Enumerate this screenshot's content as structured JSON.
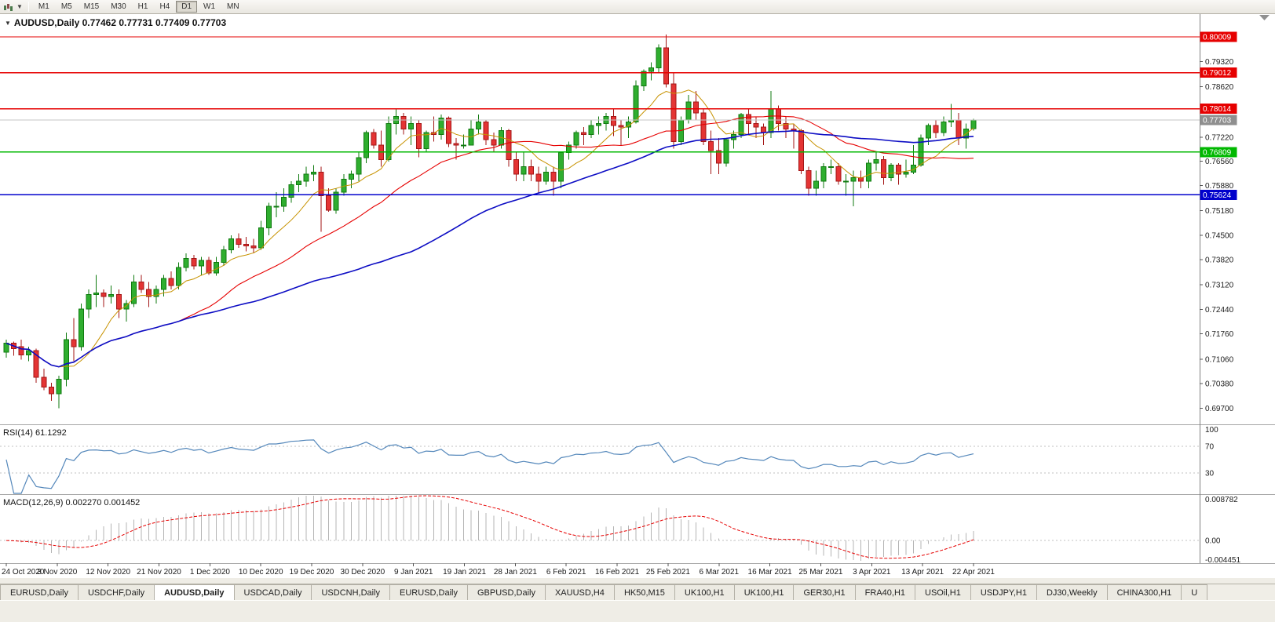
{
  "toolbar": {
    "timeframes": [
      "M1",
      "M5",
      "M15",
      "M30",
      "H1",
      "H4",
      "D1",
      "W1",
      "MN"
    ],
    "active_timeframe": "D1"
  },
  "chart": {
    "marker": "▼",
    "symbol": "AUDUSD,Daily",
    "ohlc": "0.77462 0.77731 0.77409 0.77703"
  },
  "chart_data": {
    "type": "candlestick",
    "symbol": "AUDUSD",
    "period": "Daily",
    "current_bar": {
      "open": 0.77462,
      "high": 0.77731,
      "low": 0.77409,
      "close": 0.77703
    },
    "price_axis": {
      "max": 0.8064,
      "min": 0.6927,
      "ticks": [
        "0.79320",
        "0.78620",
        "0.77220",
        "0.76560",
        "0.75880",
        "0.75180",
        "0.74500",
        "0.73820",
        "0.73120",
        "0.72440",
        "0.71760",
        "0.71060",
        "0.70380",
        "0.69700"
      ]
    },
    "hlines": [
      {
        "price": 0.80009,
        "label": "0.80009",
        "color": "#e60000"
      },
      {
        "price": 0.79012,
        "label": "0.79012",
        "color": "#e60000"
      },
      {
        "price": 0.78014,
        "label": "0.78014",
        "color": "#e60000"
      },
      {
        "price": 0.76809,
        "label": "0.76809",
        "color": "#00b800"
      },
      {
        "price": 0.75624,
        "label": "0.75624",
        "color": "#0000cc"
      }
    ],
    "bid_line": {
      "price": 0.77703,
      "label": "0.77703",
      "box_color": "#8f8f8f",
      "line_color": "#c6c6c6"
    },
    "moving_averages": [
      {
        "period": 8,
        "color": "#c79200",
        "width": 1
      },
      {
        "period": 24,
        "color": "#e60000",
        "width": 1.1
      },
      {
        "period": 55,
        "color": "#0d0dc4",
        "width": 1.6
      }
    ],
    "indicators": {
      "rsi": {
        "name": "RSI(14)",
        "value": "61.1292",
        "color": "#5588bb",
        "axis_labels": [
          "100",
          "70",
          "30"
        ],
        "levels": [
          70,
          30
        ]
      },
      "macd": {
        "name": "MACD(12,26,9)",
        "values": "0.002270 0.001452",
        "hist_color": "#b4b4b4",
        "signal_color": "#e60000",
        "axis_max": "0.008782",
        "axis_zero": "0.00",
        "axis_min": "-0.004451",
        "range": {
          "max": 0.008782,
          "min": -0.004451
        }
      }
    },
    "candle_colors": {
      "bull": "#2fae2f",
      "bull_border": "#0f7a0f",
      "bear": "#e43434",
      "bear_border": "#a31616"
    },
    "date_labels": [
      "24 Oct 2020",
      "3 Nov 2020",
      "12 Nov 2020",
      "21 Nov 2020",
      "1 Dec 2020",
      "10 Dec 2020",
      "19 Dec 2020",
      "30 Dec 2020",
      "9 Jan 2021",
      "19 Jan 2021",
      "28 Jan 2021",
      "6 Feb 2021",
      "16 Feb 2021",
      "25 Feb 2021",
      "6 Mar 2021",
      "16 Mar 2021",
      "25 Mar 2021",
      "3 Apr 2021",
      "13 Apr 2021",
      "22 Apr 2021"
    ],
    "candles": [
      [
        0.7125,
        0.716,
        0.711,
        0.715
      ],
      [
        0.715,
        0.7155,
        0.7115,
        0.7135
      ],
      [
        0.714,
        0.716,
        0.7105,
        0.7118
      ],
      [
        0.7118,
        0.714,
        0.71,
        0.713
      ],
      [
        0.713,
        0.7135,
        0.704,
        0.7055
      ],
      [
        0.7055,
        0.708,
        0.702,
        0.7028
      ],
      [
        0.7028,
        0.704,
        0.699,
        0.701
      ],
      [
        0.701,
        0.706,
        0.697,
        0.705
      ],
      [
        0.705,
        0.718,
        0.703,
        0.716
      ],
      [
        0.716,
        0.722,
        0.71,
        0.714
      ],
      [
        0.714,
        0.726,
        0.713,
        0.7245
      ],
      [
        0.7245,
        0.73,
        0.722,
        0.7285
      ],
      [
        0.7285,
        0.734,
        0.725,
        0.729
      ],
      [
        0.729,
        0.73,
        0.725,
        0.728
      ],
      [
        0.728,
        0.731,
        0.726,
        0.7285
      ],
      [
        0.7285,
        0.73,
        0.722,
        0.7245
      ],
      [
        0.7245,
        0.727,
        0.721,
        0.726
      ],
      [
        0.726,
        0.734,
        0.725,
        0.732
      ],
      [
        0.732,
        0.734,
        0.729,
        0.73
      ],
      [
        0.73,
        0.732,
        0.725,
        0.728
      ],
      [
        0.728,
        0.731,
        0.726,
        0.73
      ],
      [
        0.73,
        0.734,
        0.728,
        0.733
      ],
      [
        0.733,
        0.735,
        0.73,
        0.731
      ],
      [
        0.731,
        0.7375,
        0.73,
        0.736
      ],
      [
        0.736,
        0.74,
        0.735,
        0.7385
      ],
      [
        0.7385,
        0.7395,
        0.7355,
        0.7365
      ],
      [
        0.7365,
        0.739,
        0.734,
        0.738
      ],
      [
        0.738,
        0.739,
        0.734,
        0.7345
      ],
      [
        0.7345,
        0.739,
        0.7338,
        0.7375
      ],
      [
        0.7375,
        0.742,
        0.7365,
        0.741
      ],
      [
        0.741,
        0.745,
        0.74,
        0.744
      ],
      [
        0.744,
        0.7455,
        0.7415,
        0.7425
      ],
      [
        0.7425,
        0.7445,
        0.7405,
        0.742
      ],
      [
        0.742,
        0.744,
        0.74,
        0.7415
      ],
      [
        0.7415,
        0.749,
        0.741,
        0.747
      ],
      [
        0.747,
        0.754,
        0.745,
        0.753
      ],
      [
        0.753,
        0.757,
        0.75,
        0.753
      ],
      [
        0.753,
        0.758,
        0.7515,
        0.7555
      ],
      [
        0.7555,
        0.76,
        0.754,
        0.759
      ],
      [
        0.759,
        0.762,
        0.757,
        0.76
      ],
      [
        0.76,
        0.764,
        0.7585,
        0.762
      ],
      [
        0.762,
        0.7645,
        0.76,
        0.7625
      ],
      [
        0.7625,
        0.764,
        0.746,
        0.756
      ],
      [
        0.756,
        0.758,
        0.7515,
        0.752
      ],
      [
        0.752,
        0.758,
        0.751,
        0.757
      ],
      [
        0.757,
        0.762,
        0.756,
        0.7605
      ],
      [
        0.7605,
        0.763,
        0.758,
        0.762
      ],
      [
        0.762,
        0.768,
        0.76,
        0.7665
      ],
      [
        0.7665,
        0.774,
        0.765,
        0.7735
      ],
      [
        0.7735,
        0.7745,
        0.769,
        0.77
      ],
      [
        0.77,
        0.774,
        0.764,
        0.766
      ],
      [
        0.766,
        0.778,
        0.7655,
        0.776
      ],
      [
        0.776,
        0.78,
        0.773,
        0.778
      ],
      [
        0.778,
        0.779,
        0.773,
        0.7745
      ],
      [
        0.7745,
        0.778,
        0.77,
        0.776
      ],
      [
        0.776,
        0.777,
        0.7666,
        0.769
      ],
      [
        0.769,
        0.774,
        0.768,
        0.7735
      ],
      [
        0.7735,
        0.778,
        0.771,
        0.773
      ],
      [
        0.773,
        0.7785,
        0.7715,
        0.7775
      ],
      [
        0.7775,
        0.778,
        0.7695,
        0.7705
      ],
      [
        0.7705,
        0.772,
        0.766,
        0.77
      ],
      [
        0.77,
        0.773,
        0.769,
        0.77
      ],
      [
        0.77,
        0.777,
        0.77,
        0.7745
      ],
      [
        0.7745,
        0.7785,
        0.773,
        0.7765
      ],
      [
        0.7765,
        0.777,
        0.77,
        0.7715
      ],
      [
        0.7715,
        0.7735,
        0.768,
        0.77
      ],
      [
        0.77,
        0.775,
        0.769,
        0.774
      ],
      [
        0.774,
        0.7745,
        0.764,
        0.766
      ],
      [
        0.766,
        0.768,
        0.76,
        0.762
      ],
      [
        0.762,
        0.768,
        0.76,
        0.764
      ],
      [
        0.764,
        0.766,
        0.76,
        0.762
      ],
      [
        0.762,
        0.764,
        0.7565,
        0.76
      ],
      [
        0.76,
        0.764,
        0.759,
        0.7625
      ],
      [
        0.7625,
        0.764,
        0.756,
        0.76
      ],
      [
        0.76,
        0.768,
        0.758,
        0.768
      ],
      [
        0.768,
        0.771,
        0.766,
        0.77
      ],
      [
        0.77,
        0.774,
        0.769,
        0.7735
      ],
      [
        0.7735,
        0.775,
        0.77,
        0.773
      ],
      [
        0.773,
        0.777,
        0.772,
        0.7755
      ],
      [
        0.7755,
        0.778,
        0.773,
        0.776
      ],
      [
        0.776,
        0.779,
        0.774,
        0.778
      ],
      [
        0.778,
        0.78,
        0.7725,
        0.7755
      ],
      [
        0.7755,
        0.777,
        0.77,
        0.775
      ],
      [
        0.775,
        0.778,
        0.772,
        0.7765
      ],
      [
        0.7765,
        0.788,
        0.776,
        0.7865
      ],
      [
        0.7865,
        0.791,
        0.785,
        0.7905
      ],
      [
        0.7905,
        0.793,
        0.788,
        0.7915
      ],
      [
        0.7915,
        0.798,
        0.79,
        0.797
      ],
      [
        0.797,
        0.8007,
        0.786,
        0.787
      ],
      [
        0.787,
        0.79,
        0.769,
        0.771
      ],
      [
        0.771,
        0.778,
        0.77,
        0.777
      ],
      [
        0.777,
        0.784,
        0.776,
        0.782
      ],
      [
        0.782,
        0.785,
        0.777,
        0.779
      ],
      [
        0.779,
        0.78,
        0.77,
        0.771
      ],
      [
        0.771,
        0.774,
        0.762,
        0.7685
      ],
      [
        0.7685,
        0.772,
        0.762,
        0.765
      ],
      [
        0.765,
        0.772,
        0.764,
        0.7715
      ],
      [
        0.7715,
        0.774,
        0.769,
        0.773
      ],
      [
        0.773,
        0.779,
        0.772,
        0.7785
      ],
      [
        0.7785,
        0.78,
        0.773,
        0.776
      ],
      [
        0.776,
        0.778,
        0.772,
        0.775
      ],
      [
        0.775,
        0.776,
        0.77,
        0.7735
      ],
      [
        0.7735,
        0.785,
        0.772,
        0.78
      ],
      [
        0.78,
        0.781,
        0.774,
        0.776
      ],
      [
        0.776,
        0.778,
        0.772,
        0.7745
      ],
      [
        0.7745,
        0.776,
        0.769,
        0.774
      ],
      [
        0.774,
        0.7745,
        0.762,
        0.763
      ],
      [
        0.763,
        0.764,
        0.756,
        0.758
      ],
      [
        0.758,
        0.763,
        0.756,
        0.76
      ],
      [
        0.76,
        0.765,
        0.758,
        0.764
      ],
      [
        0.764,
        0.766,
        0.762,
        0.764
      ],
      [
        0.764,
        0.765,
        0.759,
        0.76
      ],
      [
        0.76,
        0.762,
        0.756,
        0.76
      ],
      [
        0.76,
        0.763,
        0.753,
        0.761
      ],
      [
        0.761,
        0.763,
        0.758,
        0.76
      ],
      [
        0.76,
        0.766,
        0.758,
        0.765
      ],
      [
        0.765,
        0.768,
        0.763,
        0.766
      ],
      [
        0.766,
        0.767,
        0.759,
        0.761
      ],
      [
        0.761,
        0.765,
        0.76,
        0.7645
      ],
      [
        0.7645,
        0.765,
        0.759,
        0.762
      ],
      [
        0.762,
        0.766,
        0.761,
        0.7625
      ],
      [
        0.7625,
        0.77,
        0.762,
        0.7645
      ],
      [
        0.7645,
        0.773,
        0.764,
        0.772
      ],
      [
        0.772,
        0.776,
        0.77,
        0.7755
      ],
      [
        0.7755,
        0.777,
        0.772,
        0.7735
      ],
      [
        0.7735,
        0.778,
        0.7725,
        0.7765
      ],
      [
        0.7765,
        0.7815,
        0.775,
        0.777
      ],
      [
        0.777,
        0.779,
        0.77,
        0.772
      ],
      [
        0.772,
        0.776,
        0.769,
        0.7745
      ],
      [
        0.77462,
        0.77731,
        0.77409,
        0.77703
      ]
    ]
  },
  "tabs": {
    "active_index": 2,
    "items": [
      "EURUSD,Daily",
      "USDCHF,Daily",
      "AUDUSD,Daily",
      "USDCAD,Daily",
      "USDCNH,Daily",
      "EURUSD,Daily",
      "GBPUSD,Daily",
      "XAUUSD,H4",
      "HK50,M15",
      "UK100,H1",
      "UK100,H1",
      "GER30,H1",
      "FRA40,H1",
      "USOil,H1",
      "USDJPY,H1",
      "DJ30,Weekly",
      "CHINA300,H1",
      "U"
    ]
  }
}
